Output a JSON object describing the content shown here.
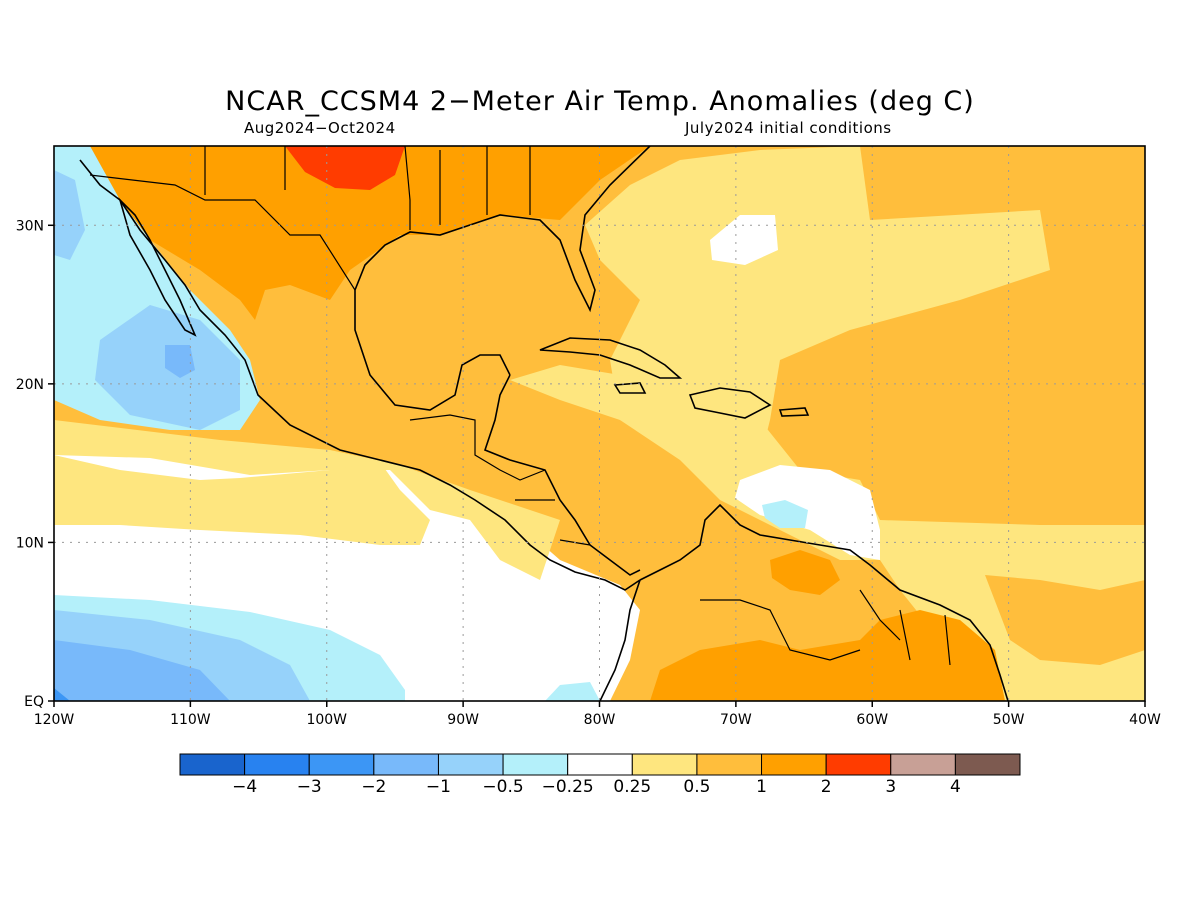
{
  "title": "NCAR_CCSM4 2−Meter Air Temp. Anomalies (deg C)",
  "subtitle_left": "Aug2024−Oct2024",
  "subtitle_right": "July2024 initial conditions",
  "map": {
    "lon_range": [
      -120,
      -40
    ],
    "lat_range": [
      0,
      35
    ],
    "lon_ticks": [
      {
        "value": -120,
        "label": "120W"
      },
      {
        "value": -110,
        "label": "110W"
      },
      {
        "value": -100,
        "label": "100W"
      },
      {
        "value": -90,
        "label": "90W"
      },
      {
        "value": -80,
        "label": "80W"
      },
      {
        "value": -70,
        "label": "70W"
      },
      {
        "value": -60,
        "label": "60W"
      },
      {
        "value": -50,
        "label": "50W"
      },
      {
        "value": -40,
        "label": "40W"
      }
    ],
    "lat_ticks": [
      {
        "value": 0,
        "label": "EQ"
      },
      {
        "value": 10,
        "label": "10N"
      },
      {
        "value": 20,
        "label": "20N"
      },
      {
        "value": 30,
        "label": "30N"
      }
    ],
    "grid": "dotted"
  },
  "colorbar": {
    "colors": [
      "#1964cd",
      "#2882f0",
      "#3c96f5",
      "#78b9fa",
      "#96d2fa",
      "#b4f0fa",
      "#ffffff",
      "#fee67f",
      "#ffbe3c",
      "#ffa000",
      "#ff3c00",
      "#c8a096",
      "#7d5a50"
    ],
    "labels": [
      "−4",
      "−3",
      "−2",
      "−1",
      "−0.5",
      "−0.25",
      "0.25",
      "0.5",
      "1",
      "2",
      "3",
      "4"
    ]
  }
}
